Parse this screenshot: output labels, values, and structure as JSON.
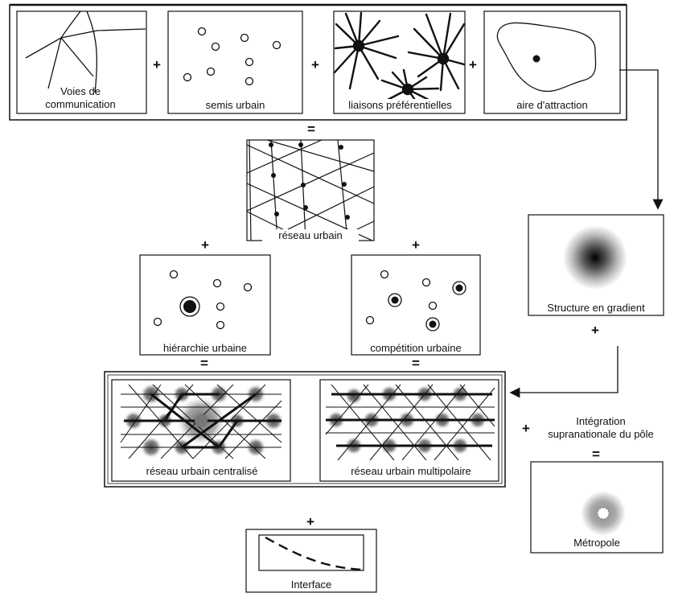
{
  "operators": {
    "plus": "+",
    "equals": "="
  },
  "top_row": {
    "voies": "Voies de\ncommunication",
    "semis": "semis urbain",
    "liaisons": "liaisons préférentielles",
    "aire": "aire d'attraction"
  },
  "reseau_urbain": "réseau urbain",
  "hierarchie": "hiérarchie urbaine",
  "competition": "compétition urbaine",
  "centralise": "réseau urbain centralisé",
  "multipolaire": "réseau urbain multipolaire",
  "interface": "Interface",
  "gradient": "Structure en gradient",
  "integration": "Intégration\nsupranationale du pôle",
  "metropole": "Métropole"
}
